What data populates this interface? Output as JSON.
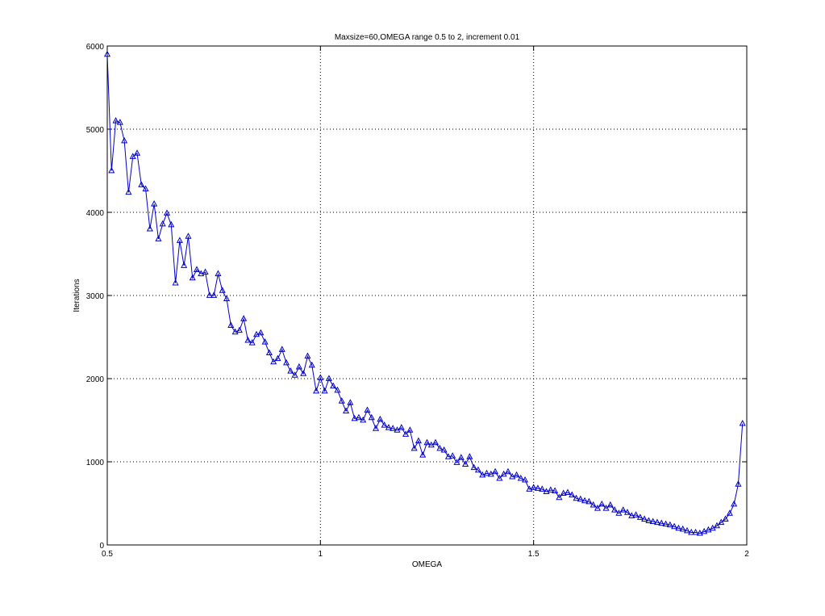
{
  "chart_data": {
    "type": "line",
    "title": "Maxsize=60,OMEGA range 0.5 to 2, increment 0.01",
    "xlabel": "OMEGA",
    "ylabel": "Iterations",
    "xlim": [
      0.5,
      2
    ],
    "ylim": [
      0,
      6000
    ],
    "xticks": [
      0.5,
      1,
      1.5,
      2
    ],
    "yticks": [
      0,
      1000,
      2000,
      3000,
      4000,
      5000,
      6000
    ],
    "xtick_labels": [
      "0.5",
      "1",
      "1.5",
      "2"
    ],
    "ytick_labels": [
      "0",
      "1000",
      "2000",
      "3000",
      "4000",
      "5000",
      "6000"
    ],
    "grid": true,
    "marker": "triangle",
    "color": "#0000cc",
    "series": [
      {
        "x": [
          0.5,
          0.51,
          0.52,
          0.53,
          0.54,
          0.55,
          0.56,
          0.57,
          0.58,
          0.59,
          0.6,
          0.61,
          0.62,
          0.63,
          0.64,
          0.65,
          0.66,
          0.67,
          0.68,
          0.69,
          0.7,
          0.71,
          0.72,
          0.73,
          0.74,
          0.75,
          0.76,
          0.77,
          0.78,
          0.79,
          0.8,
          0.81,
          0.82,
          0.83,
          0.84,
          0.85,
          0.86,
          0.87,
          0.88,
          0.89,
          0.9,
          0.91,
          0.92,
          0.93,
          0.94,
          0.95,
          0.96,
          0.97,
          0.98,
          0.99,
          1.0,
          1.01,
          1.02,
          1.03,
          1.04,
          1.05,
          1.06,
          1.07,
          1.08,
          1.09,
          1.1,
          1.11,
          1.12,
          1.13,
          1.14,
          1.15,
          1.16,
          1.17,
          1.18,
          1.19,
          1.2,
          1.21,
          1.22,
          1.23,
          1.24,
          1.25,
          1.26,
          1.27,
          1.28,
          1.29,
          1.3,
          1.31,
          1.32,
          1.33,
          1.34,
          1.35,
          1.36,
          1.37,
          1.38,
          1.39,
          1.4,
          1.41,
          1.42,
          1.43,
          1.44,
          1.45,
          1.46,
          1.47,
          1.48,
          1.49,
          1.5,
          1.51,
          1.52,
          1.53,
          1.54,
          1.55,
          1.56,
          1.57,
          1.58,
          1.59,
          1.6,
          1.61,
          1.62,
          1.63,
          1.64,
          1.65,
          1.66,
          1.67,
          1.68,
          1.69,
          1.7,
          1.71,
          1.72,
          1.73,
          1.74,
          1.75,
          1.76,
          1.77,
          1.78,
          1.79,
          1.8,
          1.81,
          1.82,
          1.83,
          1.84,
          1.85,
          1.86,
          1.87,
          1.88,
          1.89,
          1.9,
          1.91,
          1.92,
          1.93,
          1.94,
          1.95,
          1.96,
          1.97,
          1.98,
          1.99
        ],
        "y": [
          5900,
          4500,
          5100,
          5080,
          4860,
          4240,
          4670,
          4710,
          4330,
          4280,
          3800,
          4100,
          3680,
          3860,
          3990,
          3850,
          3150,
          3660,
          3360,
          3710,
          3210,
          3310,
          3260,
          3280,
          3000,
          3000,
          3260,
          3060,
          2960,
          2640,
          2560,
          2580,
          2720,
          2460,
          2430,
          2530,
          2550,
          2440,
          2310,
          2200,
          2240,
          2350,
          2190,
          2090,
          2040,
          2140,
          2060,
          2270,
          2160,
          1850,
          2010,
          1850,
          2000,
          1910,
          1860,
          1730,
          1610,
          1710,
          1520,
          1530,
          1500,
          1620,
          1530,
          1400,
          1510,
          1440,
          1410,
          1400,
          1380,
          1410,
          1330,
          1380,
          1160,
          1250,
          1080,
          1230,
          1200,
          1230,
          1160,
          1140,
          1060,
          1070,
          990,
          1050,
          970,
          1060,
          930,
          900,
          840,
          860,
          850,
          880,
          800,
          850,
          880,
          820,
          840,
          800,
          780,
          670,
          690,
          680,
          670,
          640,
          660,
          650,
          570,
          620,
          630,
          600,
          560,
          550,
          530,
          520,
          480,
          440,
          490,
          440,
          480,
          420,
          380,
          420,
          390,
          350,
          360,
          330,
          310,
          290,
          280,
          270,
          260,
          250,
          240,
          220,
          200,
          190,
          170,
          150,
          150,
          140,
          160,
          180,
          200,
          230,
          270,
          310,
          380,
          490,
          730,
          1460
        ]
      }
    ]
  }
}
